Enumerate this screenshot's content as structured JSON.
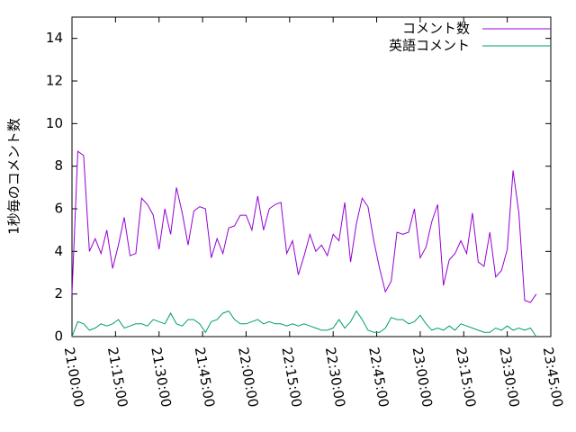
{
  "chart_data": {
    "type": "line",
    "ylabel": "1秒毎のコメント数",
    "x": [
      "21:00:00",
      "21:02:00",
      "21:04:00",
      "21:06:00",
      "21:08:00",
      "21:10:00",
      "21:12:00",
      "21:14:00",
      "21:16:00",
      "21:18:00",
      "21:20:00",
      "21:22:00",
      "21:24:00",
      "21:26:00",
      "21:28:00",
      "21:30:00",
      "21:32:00",
      "21:34:00",
      "21:36:00",
      "21:38:00",
      "21:40:00",
      "21:42:00",
      "21:44:00",
      "21:46:00",
      "21:48:00",
      "21:50:00",
      "21:52:00",
      "21:54:00",
      "21:56:00",
      "21:58:00",
      "22:00:00",
      "22:02:00",
      "22:04:00",
      "22:06:00",
      "22:08:00",
      "22:10:00",
      "22:12:00",
      "22:14:00",
      "22:16:00",
      "22:18:00",
      "22:20:00",
      "22:22:00",
      "22:24:00",
      "22:26:00",
      "22:28:00",
      "22:30:00",
      "22:32:00",
      "22:34:00",
      "22:36:00",
      "22:38:00",
      "22:40:00",
      "22:42:00",
      "22:44:00",
      "22:46:00",
      "22:48:00",
      "22:50:00",
      "22:52:00",
      "22:54:00",
      "22:56:00",
      "22:58:00",
      "23:00:00",
      "23:02:00",
      "23:04:00",
      "23:06:00",
      "23:08:00",
      "23:10:00",
      "23:12:00",
      "23:14:00",
      "23:16:00",
      "23:18:00",
      "23:20:00",
      "23:22:00",
      "23:24:00",
      "23:26:00",
      "23:28:00",
      "23:30:00",
      "23:32:00",
      "23:34:00",
      "23:36:00",
      "23:38:00",
      "23:40:00"
    ],
    "series": [
      {
        "name": "コメント数",
        "color": "#9400d3",
        "values": [
          2.0,
          8.7,
          8.5,
          4.0,
          4.6,
          3.9,
          5.0,
          3.2,
          4.3,
          5.6,
          3.8,
          3.9,
          6.5,
          6.2,
          5.7,
          4.1,
          6.0,
          4.8,
          7.0,
          5.8,
          4.3,
          5.9,
          6.1,
          6.0,
          3.7,
          4.6,
          3.9,
          5.1,
          5.2,
          5.7,
          5.7,
          5.0,
          6.6,
          5.0,
          6.0,
          6.2,
          6.3,
          3.9,
          4.5,
          2.9,
          3.8,
          4.8,
          4.0,
          4.3,
          3.8,
          4.8,
          4.5,
          6.3,
          3.5,
          5.3,
          6.5,
          6.1,
          4.5,
          3.2,
          2.1,
          2.6,
          4.9,
          4.8,
          4.9,
          6.0,
          3.7,
          4.2,
          5.4,
          6.2,
          2.4,
          3.6,
          3.9,
          4.5,
          3.9,
          5.8,
          3.5,
          3.3,
          4.9,
          2.8,
          3.1,
          4.1,
          7.8,
          5.8,
          1.7,
          1.6,
          2.0
        ]
      },
      {
        "name": "英語コメント",
        "color": "#009e73",
        "values": [
          0.0,
          0.7,
          0.6,
          0.3,
          0.4,
          0.6,
          0.5,
          0.6,
          0.8,
          0.4,
          0.5,
          0.6,
          0.6,
          0.5,
          0.8,
          0.7,
          0.6,
          1.1,
          0.6,
          0.5,
          0.8,
          0.8,
          0.6,
          0.2,
          0.7,
          0.8,
          1.1,
          1.2,
          0.8,
          0.6,
          0.6,
          0.7,
          0.8,
          0.6,
          0.7,
          0.6,
          0.6,
          0.5,
          0.6,
          0.5,
          0.6,
          0.5,
          0.4,
          0.3,
          0.3,
          0.4,
          0.8,
          0.4,
          0.7,
          1.2,
          0.8,
          0.3,
          0.2,
          0.2,
          0.4,
          0.9,
          0.8,
          0.8,
          0.6,
          0.7,
          1.0,
          0.6,
          0.3,
          0.4,
          0.3,
          0.5,
          0.3,
          0.6,
          0.5,
          0.4,
          0.3,
          0.2,
          0.2,
          0.4,
          0.3,
          0.5,
          0.3,
          0.4,
          0.3,
          0.4,
          0.0
        ]
      }
    ],
    "xlim": [
      "21:00:00",
      "23:45:00"
    ],
    "xticks": [
      "21:00:00",
      "21:15:00",
      "21:30:00",
      "21:45:00",
      "22:00:00",
      "22:15:00",
      "22:30:00",
      "22:45:00",
      "23:00:00",
      "23:15:00",
      "23:30:00",
      "23:45:00"
    ],
    "ylim": [
      0,
      15
    ],
    "yticks": [
      0,
      2,
      4,
      6,
      8,
      10,
      12,
      14
    ],
    "legend": "top-right"
  }
}
